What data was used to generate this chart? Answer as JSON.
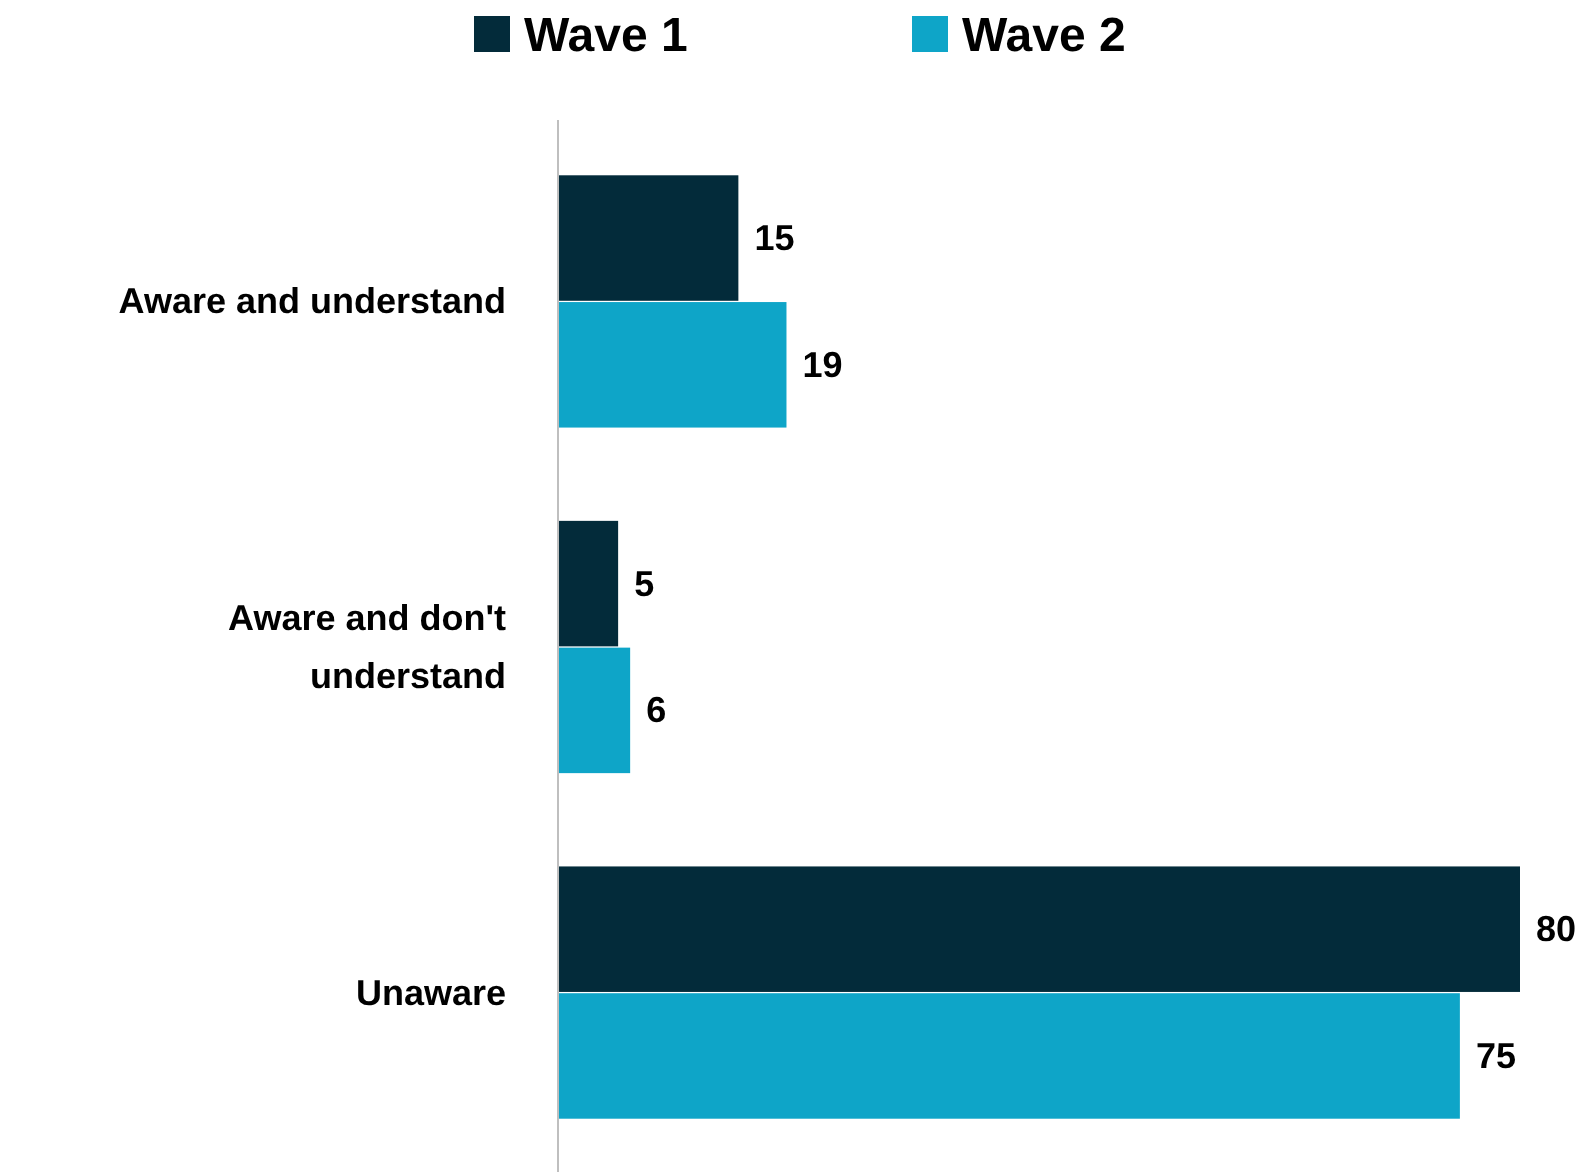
{
  "chart_data": {
    "type": "bar",
    "orientation": "horizontal",
    "data_labels": true,
    "legend": "top",
    "categories": [
      "Aware and understand",
      "Aware and don't understand",
      "Unaware"
    ],
    "series": [
      {
        "name": "Wave 1",
        "color": "#032b3a",
        "values": [
          15,
          5,
          80
        ]
      },
      {
        "name": "Wave 2",
        "color": "#0ea5c8",
        "values": [
          19,
          6,
          75
        ]
      }
    ]
  }
}
